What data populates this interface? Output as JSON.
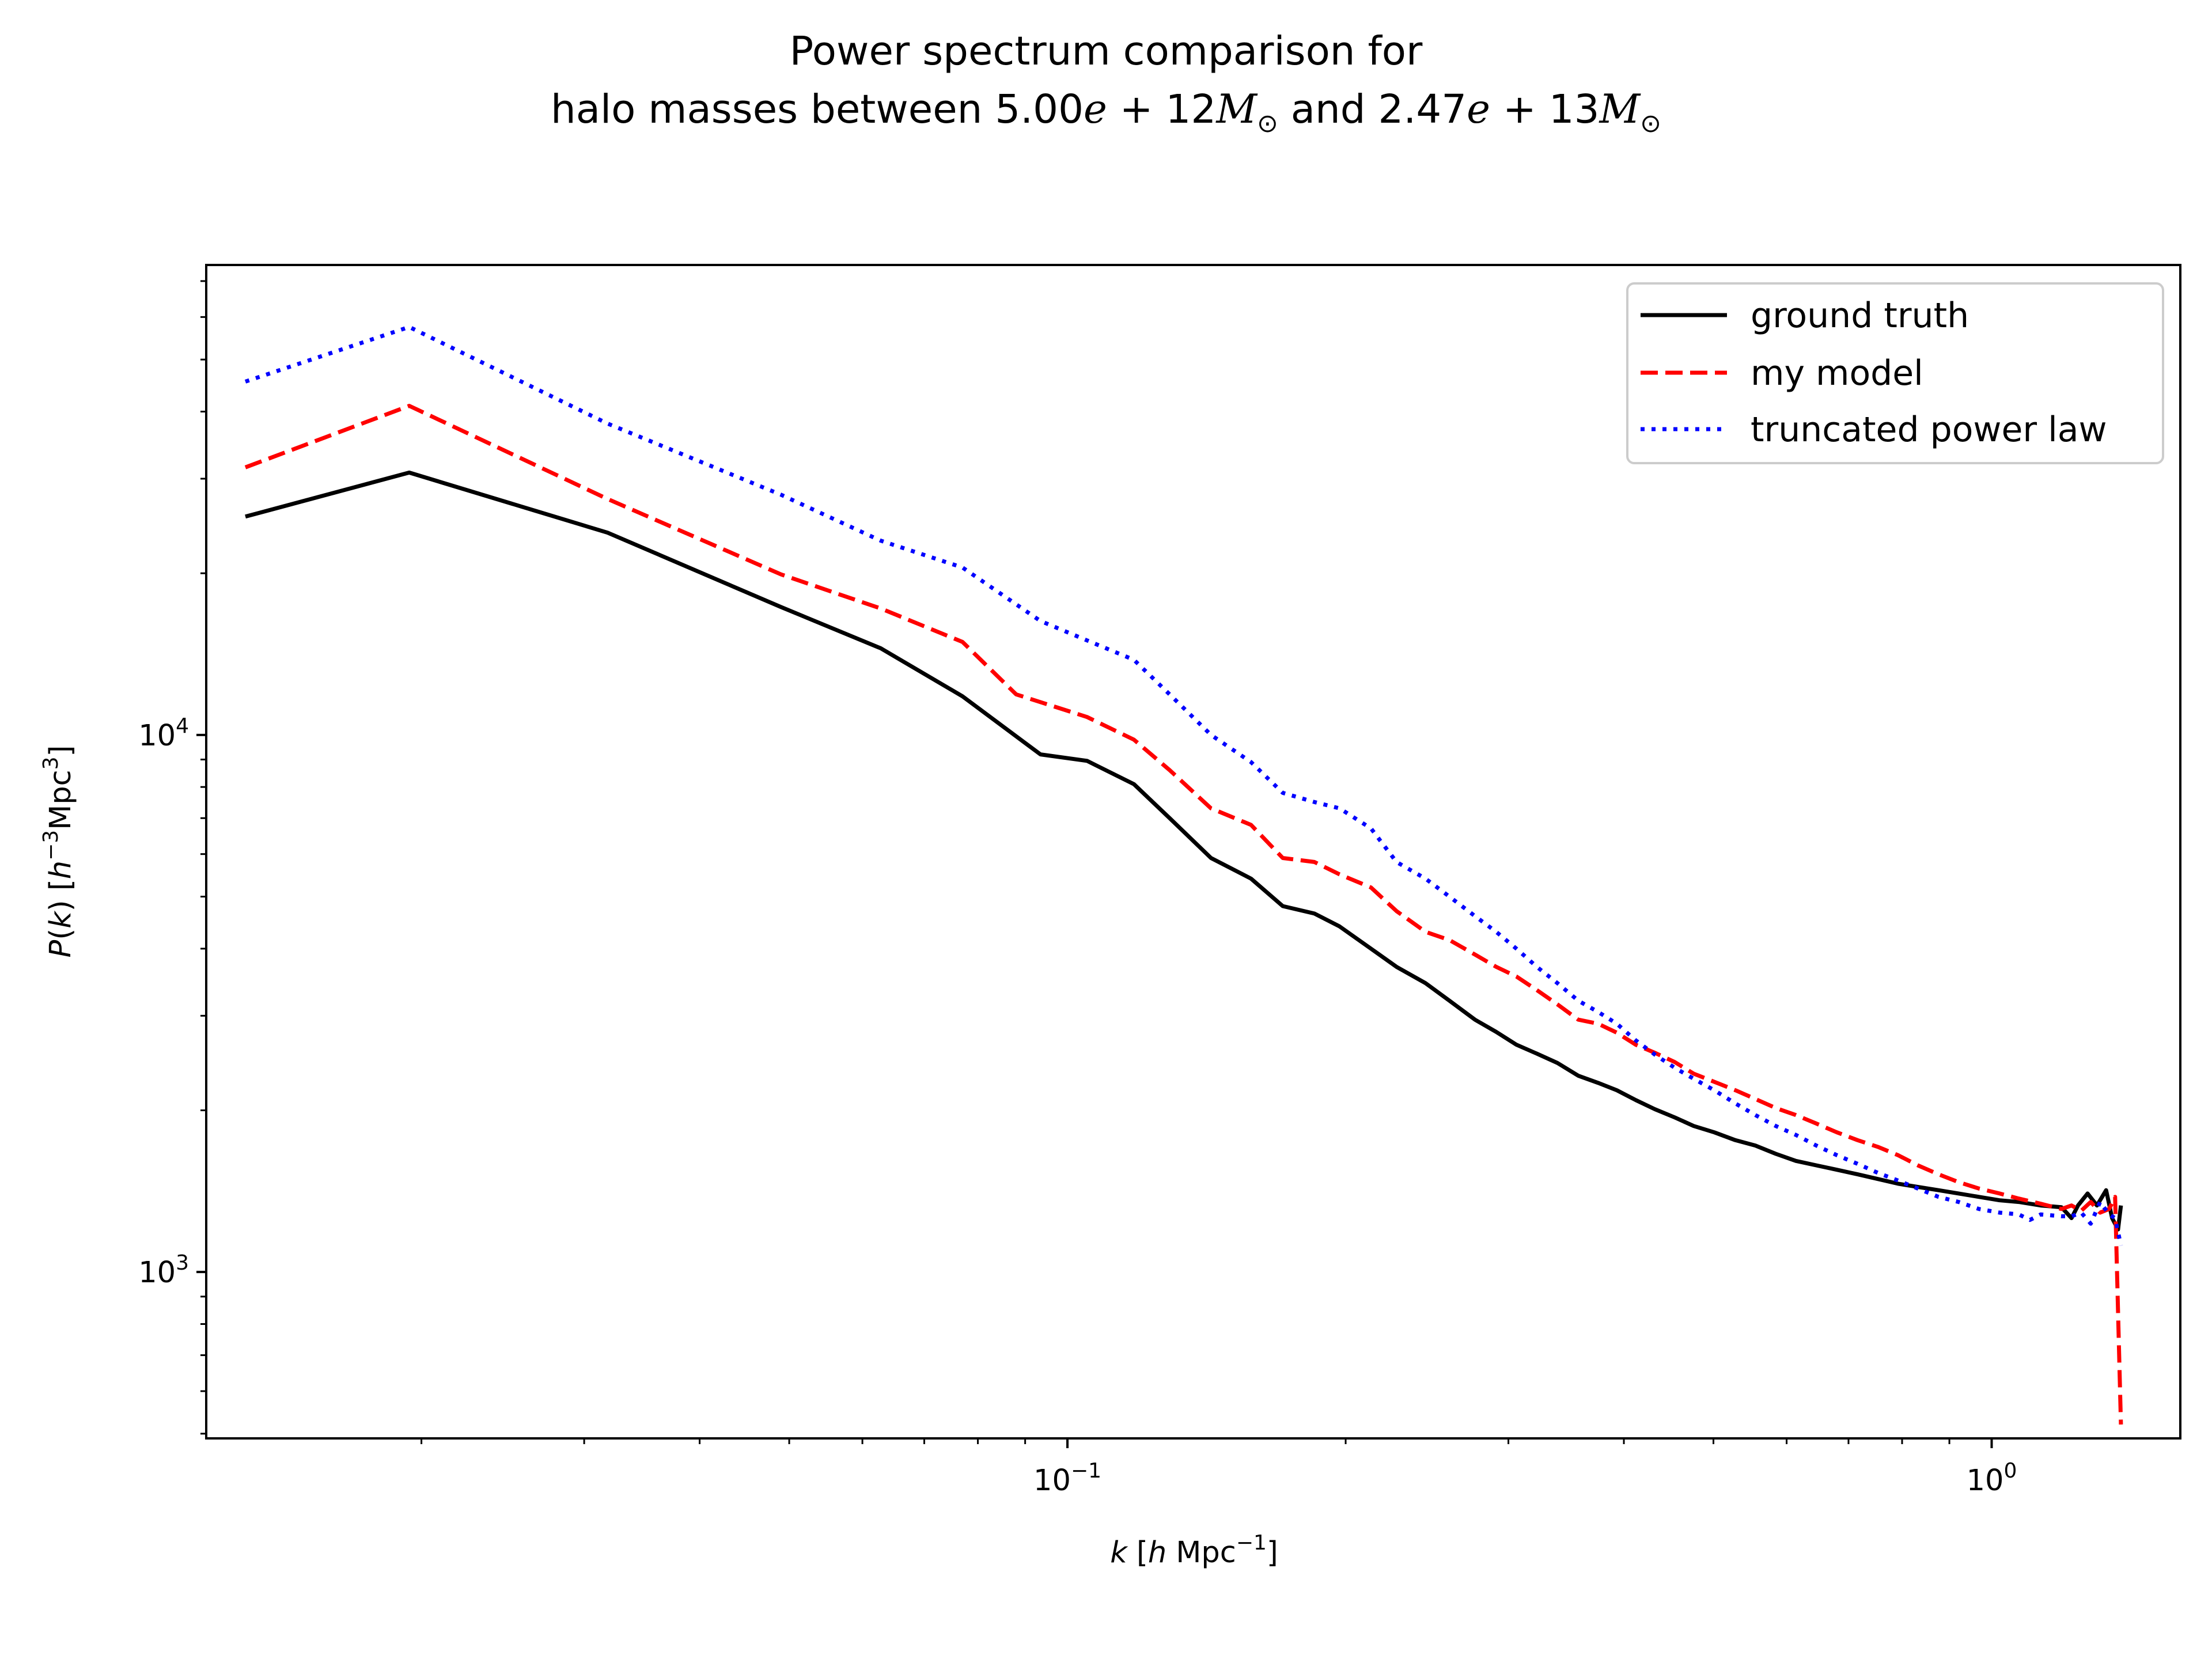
{
  "title_line1": "Power spectrum comparison for",
  "title_line2": {
    "prefix": "halo masses between ",
    "v1": "5.00",
    "e1": "e",
    "p1": " + 12",
    "m1": "M",
    "sun": "⊙",
    "and": " and ",
    "v2": "2.47",
    "e2": "e",
    "p2": " + 13",
    "m2": "M"
  },
  "xlabel": {
    "k": "k",
    "open": " [",
    "h": "h",
    "unit": " Mpc",
    "exp": "−1",
    "close": "]"
  },
  "ylabel": {
    "p": "P",
    "paren_open": "(",
    "k": "k",
    "paren_close": ")",
    "open": " [",
    "h": "h",
    "exp1": "−3",
    "unit": "Mpc",
    "exp2": "3",
    "close": "]"
  },
  "chart_data": {
    "type": "line",
    "xscale": "log",
    "yscale": "log",
    "xlim": [
      0.0117,
      1.6
    ],
    "ylim": [
      490,
      75000
    ],
    "x_ticks": [
      {
        "value": 0.1,
        "base": "10",
        "exp": "−1"
      },
      {
        "value": 1.0,
        "base": "10",
        "exp": "0"
      }
    ],
    "y_ticks": [
      {
        "value": 1000,
        "base": "10",
        "exp": "3"
      },
      {
        "value": 10000,
        "base": "10",
        "exp": "4"
      }
    ],
    "legend_position": "top-right",
    "grid": false,
    "series": [
      {
        "name": "ground truth",
        "color": "#000000",
        "style": "solid",
        "points": [
          [
            0.0129,
            25500
          ],
          [
            0.0194,
            30800
          ],
          [
            0.0318,
            23800
          ],
          [
            0.049,
            17300
          ],
          [
            0.0628,
            14500
          ],
          [
            0.077,
            11800
          ],
          [
            0.0935,
            9200
          ],
          [
            0.105,
            8950
          ],
          [
            0.118,
            8100
          ],
          [
            0.129,
            7000
          ],
          [
            0.143,
            5900
          ],
          [
            0.158,
            5400
          ],
          [
            0.171,
            4800
          ],
          [
            0.185,
            4650
          ],
          [
            0.197,
            4400
          ],
          [
            0.213,
            4000
          ],
          [
            0.227,
            3700
          ],
          [
            0.244,
            3450
          ],
          [
            0.259,
            3200
          ],
          [
            0.276,
            2950
          ],
          [
            0.291,
            2800
          ],
          [
            0.306,
            2650
          ],
          [
            0.322,
            2550
          ],
          [
            0.339,
            2450
          ],
          [
            0.357,
            2320
          ],
          [
            0.375,
            2250
          ],
          [
            0.393,
            2180
          ],
          [
            0.412,
            2090
          ],
          [
            0.432,
            2010
          ],
          [
            0.454,
            1940
          ],
          [
            0.476,
            1870
          ],
          [
            0.501,
            1820
          ],
          [
            0.528,
            1760
          ],
          [
            0.555,
            1720
          ],
          [
            0.584,
            1660
          ],
          [
            0.614,
            1610
          ],
          [
            0.646,
            1580
          ],
          [
            0.68,
            1550
          ],
          [
            0.716,
            1520
          ],
          [
            0.753,
            1490
          ],
          [
            0.792,
            1460
          ],
          [
            0.832,
            1440
          ],
          [
            0.876,
            1420
          ],
          [
            0.921,
            1400
          ],
          [
            0.969,
            1380
          ],
          [
            1.02,
            1360
          ],
          [
            1.07,
            1350
          ],
          [
            1.13,
            1330
          ],
          [
            1.19,
            1320
          ],
          [
            1.22,
            1260
          ],
          [
            1.24,
            1330
          ],
          [
            1.27,
            1400
          ],
          [
            1.3,
            1330
          ],
          [
            1.33,
            1420
          ],
          [
            1.35,
            1260
          ],
          [
            1.37,
            1200
          ],
          [
            1.38,
            1330
          ]
        ]
      },
      {
        "name": "my model",
        "color": "#ff0000",
        "style": "dashed",
        "points": [
          [
            0.0129,
            31500
          ],
          [
            0.0194,
            41000
          ],
          [
            0.0318,
            27500
          ],
          [
            0.049,
            19900
          ],
          [
            0.0628,
            17200
          ],
          [
            0.077,
            14900
          ],
          [
            0.088,
            11900
          ],
          [
            0.105,
            10800
          ],
          [
            0.118,
            9800
          ],
          [
            0.129,
            8600
          ],
          [
            0.143,
            7300
          ],
          [
            0.158,
            6800
          ],
          [
            0.171,
            5900
          ],
          [
            0.185,
            5800
          ],
          [
            0.197,
            5500
          ],
          [
            0.213,
            5200
          ],
          [
            0.227,
            4700
          ],
          [
            0.244,
            4300
          ],
          [
            0.259,
            4150
          ],
          [
            0.276,
            3900
          ],
          [
            0.291,
            3700
          ],
          [
            0.306,
            3550
          ],
          [
            0.322,
            3350
          ],
          [
            0.339,
            3150
          ],
          [
            0.357,
            2950
          ],
          [
            0.375,
            2900
          ],
          [
            0.393,
            2790
          ],
          [
            0.412,
            2650
          ],
          [
            0.432,
            2560
          ],
          [
            0.454,
            2460
          ],
          [
            0.476,
            2340
          ],
          [
            0.501,
            2260
          ],
          [
            0.528,
            2180
          ],
          [
            0.555,
            2100
          ],
          [
            0.584,
            2020
          ],
          [
            0.614,
            1960
          ],
          [
            0.646,
            1890
          ],
          [
            0.68,
            1820
          ],
          [
            0.716,
            1760
          ],
          [
            0.753,
            1710
          ],
          [
            0.792,
            1650
          ],
          [
            0.832,
            1580
          ],
          [
            0.876,
            1520
          ],
          [
            0.921,
            1470
          ],
          [
            0.969,
            1430
          ],
          [
            1.02,
            1400
          ],
          [
            1.07,
            1370
          ],
          [
            1.13,
            1340
          ],
          [
            1.19,
            1310
          ],
          [
            1.22,
            1330
          ],
          [
            1.25,
            1300
          ],
          [
            1.28,
            1350
          ],
          [
            1.31,
            1290
          ],
          [
            1.34,
            1310
          ],
          [
            1.36,
            1380
          ],
          [
            1.38,
            520
          ]
        ]
      },
      {
        "name": "truncated power law",
        "color": "#0000ff",
        "style": "dotted",
        "points": [
          [
            0.0129,
            45500
          ],
          [
            0.0194,
            57500
          ],
          [
            0.0318,
            38000
          ],
          [
            0.049,
            28000
          ],
          [
            0.0628,
            23000
          ],
          [
            0.077,
            20500
          ],
          [
            0.0935,
            16300
          ],
          [
            0.105,
            15000
          ],
          [
            0.118,
            13800
          ],
          [
            0.129,
            11900
          ],
          [
            0.143,
            10000
          ],
          [
            0.158,
            8900
          ],
          [
            0.171,
            7800
          ],
          [
            0.185,
            7500
          ],
          [
            0.197,
            7300
          ],
          [
            0.213,
            6700
          ],
          [
            0.227,
            5800
          ],
          [
            0.244,
            5400
          ],
          [
            0.259,
            5000
          ],
          [
            0.276,
            4600
          ],
          [
            0.291,
            4300
          ],
          [
            0.306,
            4000
          ],
          [
            0.322,
            3700
          ],
          [
            0.339,
            3450
          ],
          [
            0.357,
            3200
          ],
          [
            0.375,
            3050
          ],
          [
            0.393,
            2900
          ],
          [
            0.412,
            2700
          ],
          [
            0.432,
            2540
          ],
          [
            0.454,
            2400
          ],
          [
            0.476,
            2290
          ],
          [
            0.501,
            2180
          ],
          [
            0.528,
            2060
          ],
          [
            0.555,
            1960
          ],
          [
            0.584,
            1870
          ],
          [
            0.614,
            1800
          ],
          [
            0.646,
            1720
          ],
          [
            0.68,
            1650
          ],
          [
            0.716,
            1590
          ],
          [
            0.753,
            1530
          ],
          [
            0.792,
            1480
          ],
          [
            0.832,
            1430
          ],
          [
            0.876,
            1380
          ],
          [
            0.921,
            1350
          ],
          [
            0.969,
            1310
          ],
          [
            1.02,
            1290
          ],
          [
            1.07,
            1280
          ],
          [
            1.1,
            1250
          ],
          [
            1.13,
            1280
          ],
          [
            1.19,
            1270
          ],
          [
            1.22,
            1270
          ],
          [
            1.25,
            1290
          ],
          [
            1.28,
            1230
          ],
          [
            1.31,
            1350
          ],
          [
            1.34,
            1280
          ],
          [
            1.36,
            1260
          ],
          [
            1.38,
            1120
          ]
        ]
      }
    ]
  }
}
